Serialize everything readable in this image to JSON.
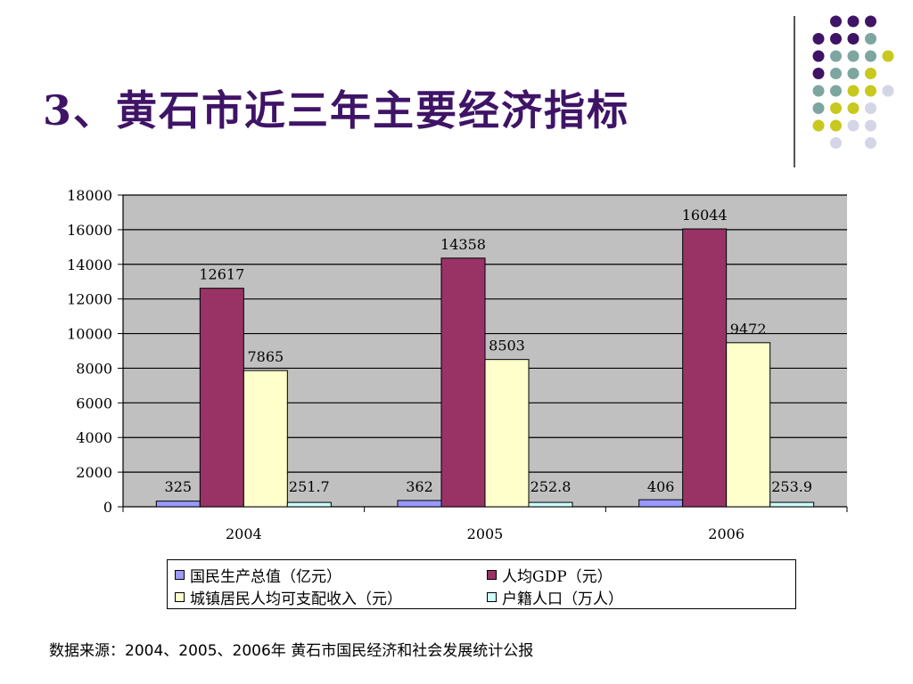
{
  "slide": {
    "title": "3、黄石市近三年主要经济指标",
    "source_note": "数据来源：2004、2005、2006年 黄石市国民经济和社会发展统计公报"
  },
  "decoration": {
    "dot_colors": [
      "#3f1466",
      "#7ea6a0",
      "#c8c81e",
      "#d5d5e8"
    ]
  },
  "chart_data": {
    "type": "bar",
    "title": "",
    "categories": [
      "2004",
      "2005",
      "2006"
    ],
    "ylim": [
      0,
      18000
    ],
    "yticks": [
      0,
      2000,
      4000,
      6000,
      8000,
      10000,
      12000,
      14000,
      16000,
      18000
    ],
    "grid": true,
    "legend_position": "bottom",
    "plot_background": "#c0c0c0",
    "series": [
      {
        "name": "国民生产总值（亿元）",
        "color": "#9999ff",
        "values": [
          325,
          362,
          406
        ],
        "labels": [
          "325",
          "362",
          "406"
        ]
      },
      {
        "name": "人均GDP（元）",
        "color": "#993366",
        "values": [
          12617,
          14358,
          16044
        ],
        "labels": [
          "12617",
          "14358",
          "16044"
        ]
      },
      {
        "name": "城镇居民人均可支配收入（元）",
        "color": "#ffffcc",
        "values": [
          7865,
          8503,
          9472
        ],
        "labels": [
          "7865",
          "8503",
          "9472"
        ]
      },
      {
        "name": "户籍人口（万人）",
        "color": "#ccffff",
        "values": [
          251.7,
          252.8,
          253.9
        ],
        "labels": [
          "251.7",
          "252.8",
          "253.9"
        ]
      }
    ]
  }
}
